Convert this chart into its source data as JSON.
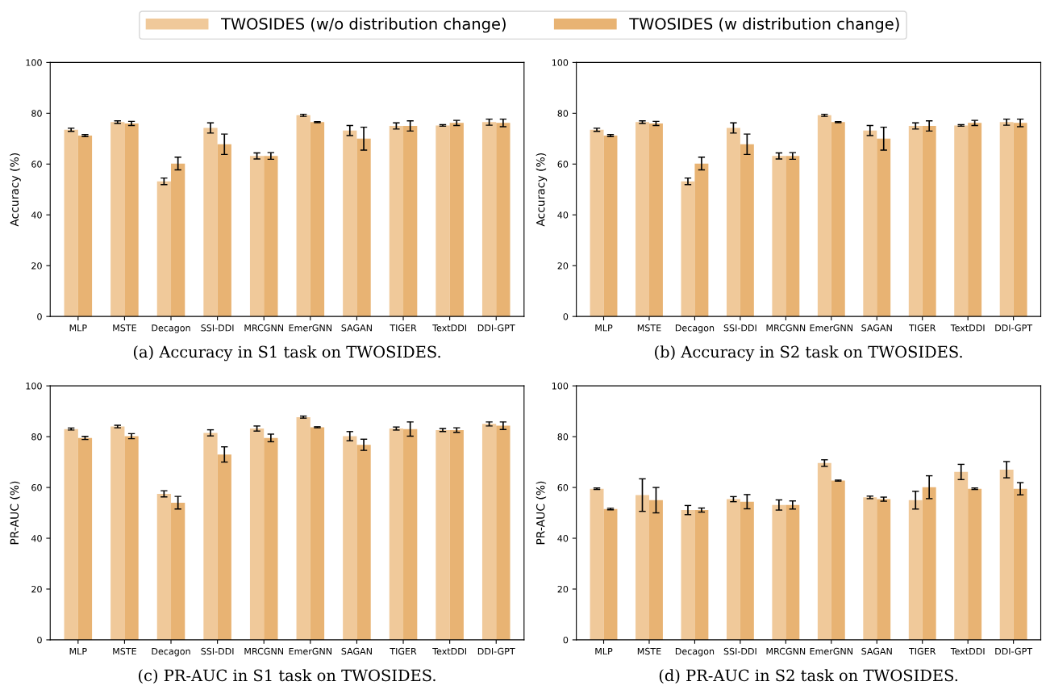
{
  "chart_data": [
    {
      "type": "bar",
      "ylabel": "Accuracy (%)",
      "annotations": [
        "(a) Accuracy in S1 task on TWOSIDES."
      ],
      "legend": "top",
      "ylim": [
        0,
        100
      ],
      "yticks": [
        0,
        20,
        40,
        60,
        80,
        100
      ],
      "categories": [
        "MLP",
        "MSTE",
        "Decagon",
        "SSI-DDI",
        "MRCGNN",
        "EmerGNN",
        "SAGAN",
        "TIGER",
        "TextDDI",
        "DDI-GPT"
      ],
      "series": [
        {
          "name": "TWOSIDES (w/o distribution change)",
          "color": "#f0c99a",
          "values": [
            73.5,
            76.5,
            53.2,
            74.2,
            63.2,
            79.2,
            73.2,
            75.0,
            75.2,
            76.5
          ],
          "errors": [
            0.6,
            0.5,
            1.3,
            2.0,
            1.2,
            0.4,
            2.0,
            1.2,
            0.3,
            1.2
          ]
        },
        {
          "name": "TWOSIDES (w distribution change)",
          "color": "#e8b373",
          "values": [
            71.2,
            76.0,
            60.2,
            67.8,
            63.2,
            76.5,
            70.0,
            75.0,
            76.2,
            76.2
          ],
          "errors": [
            0.4,
            0.8,
            2.5,
            4.0,
            1.3,
            0.2,
            4.5,
            2.0,
            1.0,
            1.5
          ]
        }
      ]
    },
    {
      "type": "bar",
      "ylabel": "Accuracy (%)",
      "annotations": [
        "(b) Accuracy in S2 task on TWOSIDES."
      ],
      "ylim": [
        0,
        100
      ],
      "yticks": [
        0,
        20,
        40,
        60,
        80,
        100
      ],
      "categories": [
        "MLP",
        "MSTE",
        "Decagon",
        "SSI-DDI",
        "MRCGNN",
        "EmerGNN",
        "SAGAN",
        "TIGER",
        "TextDDI",
        "DDI-GPT"
      ],
      "series": [
        {
          "color": "#f0c99a",
          "values": [
            73.5,
            76.5,
            53.2,
            74.2,
            63.2,
            79.2,
            73.2,
            75.0,
            75.2,
            76.5
          ],
          "errors": [
            0.6,
            0.5,
            1.3,
            2.0,
            1.2,
            0.4,
            2.0,
            1.2,
            0.3,
            1.2
          ]
        },
        {
          "color": "#e8b373",
          "values": [
            71.2,
            76.0,
            60.2,
            67.8,
            63.2,
            76.5,
            70.0,
            75.0,
            76.2,
            76.2
          ],
          "errors": [
            0.4,
            0.8,
            2.5,
            4.0,
            1.3,
            0.2,
            4.5,
            2.0,
            1.0,
            1.5
          ]
        }
      ]
    },
    {
      "type": "bar",
      "ylabel": "PR-AUC (%)",
      "annotations": [
        "(c) PR-AUC in S1 task on TWOSIDES."
      ],
      "ylim": [
        0,
        100
      ],
      "yticks": [
        0,
        20,
        40,
        60,
        80,
        100
      ],
      "categories": [
        "MLP",
        "MSTE",
        "Decagon",
        "SSI-DDI",
        "MRCGNN",
        "EmerGNN",
        "SAGAN",
        "TIGER",
        "TextDDI",
        "DDI-GPT"
      ],
      "series": [
        {
          "color": "#f0c99a",
          "values": [
            83.0,
            84.0,
            57.5,
            81.5,
            83.2,
            87.7,
            80.2,
            83.2,
            82.6,
            85.0
          ],
          "errors": [
            0.4,
            0.5,
            1.2,
            1.2,
            1.0,
            0.4,
            1.8,
            0.6,
            0.6,
            0.8
          ]
        },
        {
          "color": "#e8b373",
          "values": [
            79.5,
            80.2,
            54.0,
            73.0,
            79.5,
            83.7,
            76.8,
            83.0,
            82.6,
            84.3
          ],
          "errors": [
            0.6,
            1.0,
            2.5,
            3.0,
            1.5,
            0.2,
            2.2,
            2.8,
            0.9,
            1.5
          ]
        }
      ]
    },
    {
      "type": "bar",
      "ylabel": "PR-AUC (%)",
      "annotations": [
        "(d) PR-AUC in S2 task on TWOSIDES."
      ],
      "ylim": [
        0,
        100
      ],
      "yticks": [
        0,
        20,
        40,
        60,
        80,
        100
      ],
      "categories": [
        "MLP",
        "MSTE",
        "Decagon",
        "SSI-DDI",
        "MRCGNN",
        "EmerGNN",
        "SAGAN",
        "TIGER",
        "TextDDI",
        "DDI-GPT"
      ],
      "series": [
        {
          "color": "#f0c99a",
          "values": [
            59.5,
            57.0,
            51.1,
            55.4,
            53.1,
            69.6,
            56.1,
            55.0,
            66.1,
            67.0
          ],
          "errors": [
            0.3,
            6.4,
            1.8,
            1.0,
            2.0,
            1.3,
            0.5,
            3.5,
            3.0,
            3.2
          ]
        },
        {
          "color": "#e8b373",
          "values": [
            51.5,
            55.0,
            51.1,
            54.4,
            53.1,
            62.7,
            55.4,
            60.1,
            59.5,
            59.5
          ],
          "errors": [
            0.3,
            5.0,
            0.8,
            2.8,
            1.6,
            0.2,
            0.8,
            4.5,
            0.3,
            2.4
          ]
        }
      ]
    }
  ]
}
